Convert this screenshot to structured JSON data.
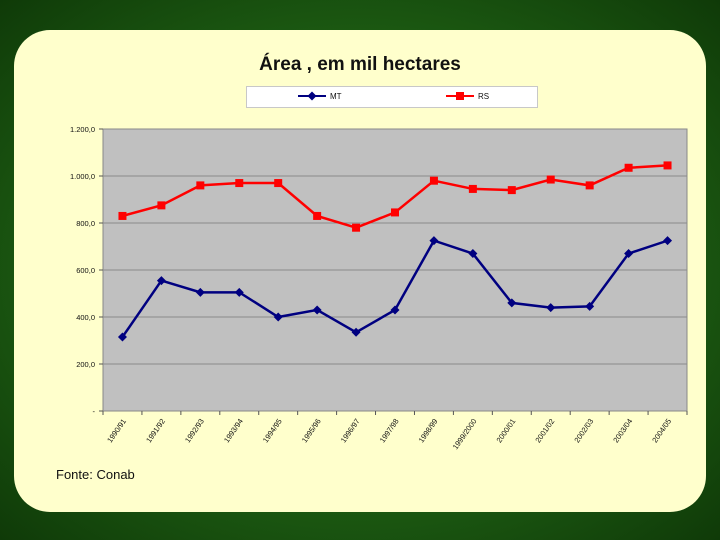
{
  "slide": {
    "source": "Fonte: Conab"
  },
  "chart_data": {
    "type": "line",
    "title": "Área , em mil hectares",
    "xlabel": "",
    "ylabel": "",
    "ylim": [
      0,
      1200
    ],
    "y_ticks": [
      "-",
      "200,0",
      "400,0",
      "600,0",
      "800,0",
      "1.000,0",
      "1.200,0"
    ],
    "grid": true,
    "legend_position": "top",
    "categories": [
      "1990/91",
      "1991/92",
      "1992/93",
      "1993/94",
      "1994/95",
      "1995/96",
      "1996/97",
      "1997/98",
      "1998/99",
      "1999/2000",
      "2000/01",
      "2001/02",
      "2002/03",
      "2003/04",
      "2004/05"
    ],
    "series": [
      {
        "name": "MT",
        "color": "#000080",
        "marker": "diamond",
        "values": [
          315,
          555,
          505,
          505,
          400,
          430,
          335,
          430,
          725,
          670,
          460,
          440,
          445,
          670,
          725
        ]
      },
      {
        "name": "RS",
        "color": "#ff0000",
        "marker": "square",
        "values": [
          830,
          875,
          960,
          970,
          970,
          830,
          780,
          845,
          980,
          945,
          940,
          985,
          960,
          1035,
          1045
        ]
      }
    ]
  }
}
